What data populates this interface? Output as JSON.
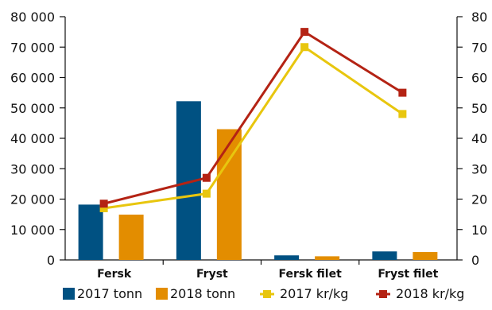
{
  "chart_data": {
    "type": "bar+line",
    "categories": [
      "Fersk",
      "Fryst",
      "Fersk filet",
      "Fryst filet"
    ],
    "title": "",
    "xlabel": "",
    "ylabel_left": "",
    "ylabel_right": "",
    "left_axis": {
      "ylim": [
        0,
        80000
      ],
      "ticks": [
        0,
        10000,
        20000,
        30000,
        40000,
        50000,
        60000,
        70000,
        80000
      ],
      "tick_labels": [
        "0",
        "10 000",
        "20 000",
        "30 000",
        "40 000",
        "50 000",
        "60 000",
        "70 000",
        "80 000"
      ]
    },
    "right_axis": {
      "ylim": [
        0,
        80
      ],
      "ticks": [
        0,
        10,
        20,
        30,
        40,
        50,
        60,
        70,
        80
      ],
      "tick_labels": [
        "0",
        "10",
        "20",
        "30",
        "40",
        "50",
        "60",
        "70",
        "80"
      ]
    },
    "grid": false,
    "legend_position": "bottom",
    "series": [
      {
        "name": "2017 tonn",
        "type": "bar",
        "axis": "left",
        "color": "#005182",
        "values": [
          18200,
          52200,
          1500,
          2800
        ]
      },
      {
        "name": "2018 tonn",
        "type": "bar",
        "axis": "left",
        "color": "#e38d00",
        "values": [
          14900,
          43000,
          1200,
          2600
        ]
      },
      {
        "name": "2017 kr/kg",
        "type": "line",
        "axis": "right",
        "color": "#e8c60e",
        "marker": "square",
        "values": [
          17,
          21.8,
          70,
          48
        ]
      },
      {
        "name": "2018 kr/kg",
        "type": "line",
        "axis": "right",
        "color": "#b42314",
        "marker": "square",
        "values": [
          18.5,
          27,
          75,
          55
        ]
      }
    ]
  }
}
